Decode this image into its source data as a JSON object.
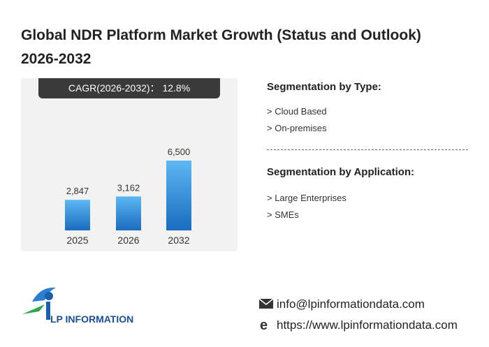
{
  "header": {
    "title": "Global NDR Platform Market Growth (Status and Outlook) 2026-2032"
  },
  "cagr": {
    "label": "CAGR(2026-2032)：",
    "value": "12.8%"
  },
  "chart_data": {
    "type": "bar",
    "categories": [
      "2025",
      "2026",
      "2032"
    ],
    "values": [
      2847,
      3162,
      6500
    ],
    "value_labels": [
      "2,847",
      "3,162",
      "6,500"
    ],
    "color": "#2a8ad8"
  },
  "segments": [
    {
      "title": "Segmentation by Type:",
      "items": [
        "> Cloud Based",
        "> On-premises"
      ]
    },
    {
      "title": "Segmentation by Application:",
      "items": [
        "> Large Enterprises",
        "> SMEs"
      ]
    }
  ],
  "logo": {
    "text": "LP INFORMATION"
  },
  "contact": {
    "email": "info@lpinformationdata.com",
    "website": "https://www.lpinformationdata.com"
  }
}
